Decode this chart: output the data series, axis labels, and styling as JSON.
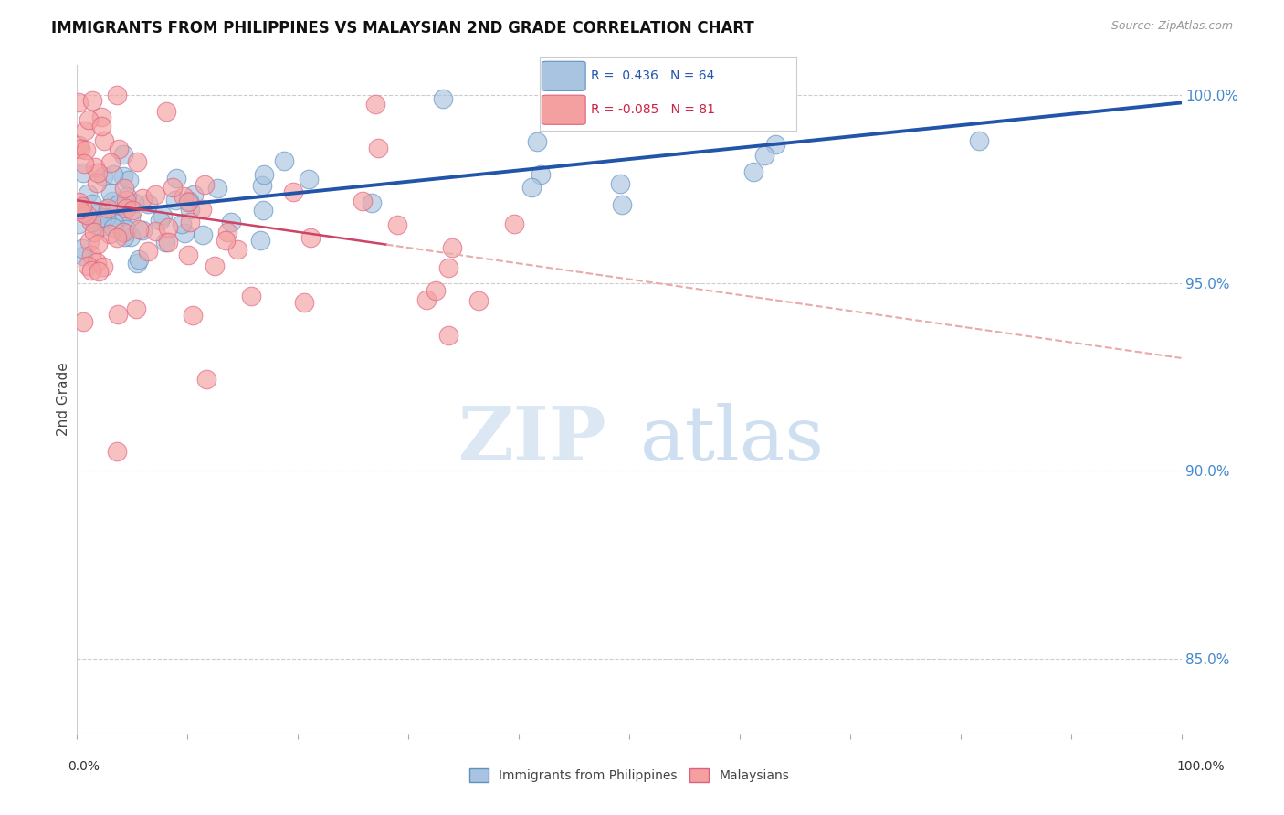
{
  "title": "IMMIGRANTS FROM PHILIPPINES VS MALAYSIAN 2ND GRADE CORRELATION CHART",
  "source": "Source: ZipAtlas.com",
  "ylabel": "2nd Grade",
  "watermark_zip": "ZIP",
  "watermark_atlas": "atlas",
  "blue_R": 0.436,
  "blue_N": 64,
  "pink_R": -0.085,
  "pink_N": 81,
  "blue_label": "Immigrants from Philippines",
  "pink_label": "Malaysians",
  "blue_color": "#a8c4e0",
  "pink_color": "#f4a0a0",
  "blue_edge_color": "#6090c0",
  "pink_edge_color": "#e06080",
  "blue_line_color": "#2255aa",
  "pink_line_color": "#cc4466",
  "pink_dash_color": "#e8aaaa",
  "right_ytick_pcts": [
    85.0,
    90.0,
    95.0,
    100.0
  ],
  "right_ytick_labels": [
    "85.0%",
    "90.0%",
    "95.0%",
    "100.0%"
  ],
  "xlim": [
    0.0,
    1.0
  ],
  "ylim": [
    0.83,
    1.008
  ],
  "legend_R_color": "#2255aa",
  "legend_neg_R_color": "#cc2244"
}
